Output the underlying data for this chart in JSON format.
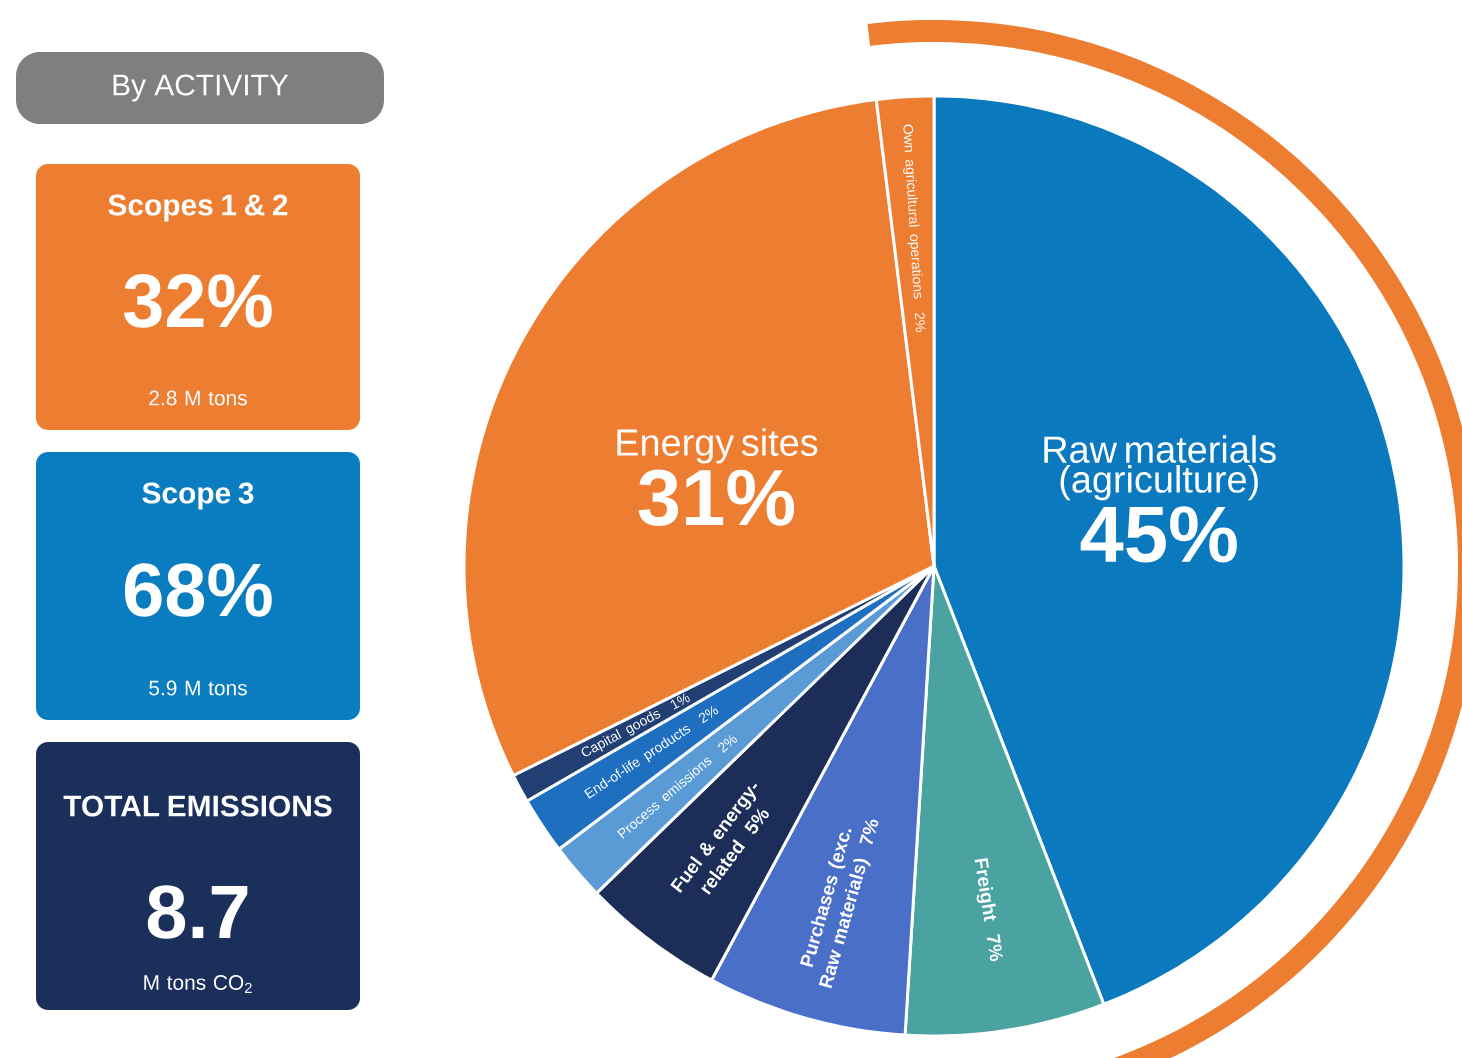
{
  "chart_data": {
    "type": "pie",
    "title": "By ACTIVITY",
    "categories": [
      "Raw materials (agriculture)",
      "Freight",
      "Purchases (exc. Raw materials)",
      "Fuel & energy-related",
      "Process emissions",
      "End-of-life products",
      "Capital goods",
      "Energy sites",
      "Own agricultural operations"
    ],
    "values": [
      45,
      7,
      7,
      5,
      2,
      2,
      1,
      31,
      2
    ],
    "value_labels": [
      "45%",
      "7%",
      "7%",
      "5%",
      "2%",
      "2%",
      "1%",
      "31%",
      "2%"
    ],
    "colors": [
      "#0a79be",
      "#4aa3a0",
      "#4a6fc8",
      "#1c2d58",
      "#5b9bd5",
      "#1f6fc0",
      "#213f73",
      "#ed7d31",
      "#ed7d31"
    ],
    "annotations": [
      "Scopes 1 & 2",
      "32%",
      "2.8 M tons",
      "Scope 3",
      "68%",
      "5.9 M tons",
      "TOTAL EMISSIONS",
      "8.7",
      "M tons CO$_{2}$"
    ]
  }
}
